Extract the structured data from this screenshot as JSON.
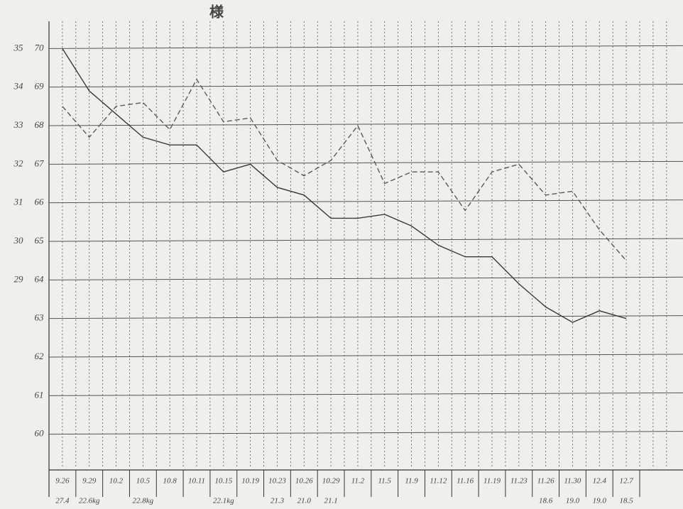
{
  "chart_data": {
    "type": "line",
    "title": "様",
    "categories": [
      "9.26",
      "9.29",
      "10.2",
      "10.5",
      "10.8",
      "10.11",
      "10.15",
      "10.19",
      "10.23",
      "10.26",
      "10.29",
      "11.2",
      "11.5",
      "11.9",
      "11.12",
      "11.16",
      "11.19",
      "11.23",
      "11.26",
      "11.30",
      "12.4",
      "12.7"
    ],
    "notes": [
      "27.4",
      "22.6kg",
      null,
      "22.8kg",
      null,
      null,
      "22.1kg",
      null,
      "21.3",
      "21.0",
      "21.1",
      null,
      null,
      null,
      null,
      null,
      null,
      null,
      "18.6",
      "19.0",
      "19.0",
      "18.5"
    ],
    "series": [
      {
        "color": "#3a3a3a",
        "style": "solid",
        "values": [
          70,
          68.9,
          68.3,
          67.7,
          67.5,
          67.5,
          66.8,
          67.0,
          66.4,
          66.2,
          65.6,
          65.6,
          65.7,
          65.4,
          64.9,
          64.6,
          64.6,
          63.9,
          63.3,
          62.9,
          63.2,
          63.0
        ]
      },
      {
        "color": "#5a5a5a",
        "style": "dashed",
        "axis": "y2",
        "values": [
          33.5,
          32.7,
          33.5,
          33.6,
          32.9,
          34.2,
          33.1,
          33.2,
          32.1,
          31.7,
          32.1,
          33.0,
          31.5,
          31.8,
          31.8,
          30.8,
          31.8,
          32.0,
          31.2,
          31.3,
          30.3,
          29.5
        ]
      }
    ],
    "ylim": [
      59,
      71
    ],
    "yticks": [
      60,
      61,
      62,
      63,
      64,
      65,
      66,
      67,
      68,
      69,
      70
    ],
    "y2lim": [
      24,
      36
    ],
    "y2ticks": [
      29,
      30,
      31,
      32,
      33,
      34,
      35
    ],
    "grid": true
  }
}
